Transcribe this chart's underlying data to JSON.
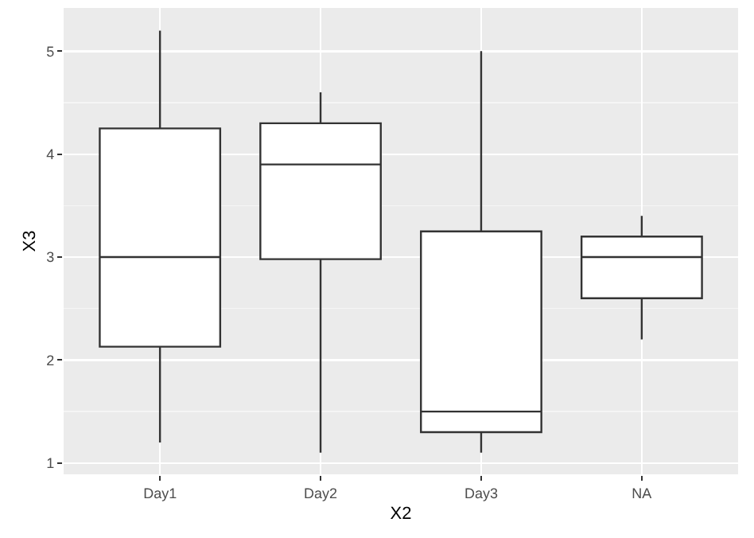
{
  "chart_data": {
    "type": "box",
    "xlabel": "X2",
    "ylabel": "X3",
    "categories": [
      "Day1",
      "Day2",
      "Day3",
      "NA"
    ],
    "boxes": [
      {
        "low": 1.2,
        "q1": 2.13,
        "median": 3.0,
        "q3": 4.25,
        "high": 5.2
      },
      {
        "low": 1.1,
        "q1": 2.98,
        "median": 3.9,
        "q3": 4.3,
        "high": 4.6
      },
      {
        "low": 1.1,
        "q1": 1.3,
        "median": 1.5,
        "q3": 3.25,
        "high": 5.0
      },
      {
        "low": 2.2,
        "q1": 2.6,
        "median": 3.0,
        "q3": 3.2,
        "high": 3.4
      }
    ],
    "color": "#333333",
    "ylim": [
      0.89,
      5.42
    ],
    "yticks": [
      1,
      2,
      3,
      4,
      5
    ],
    "grid": true
  }
}
